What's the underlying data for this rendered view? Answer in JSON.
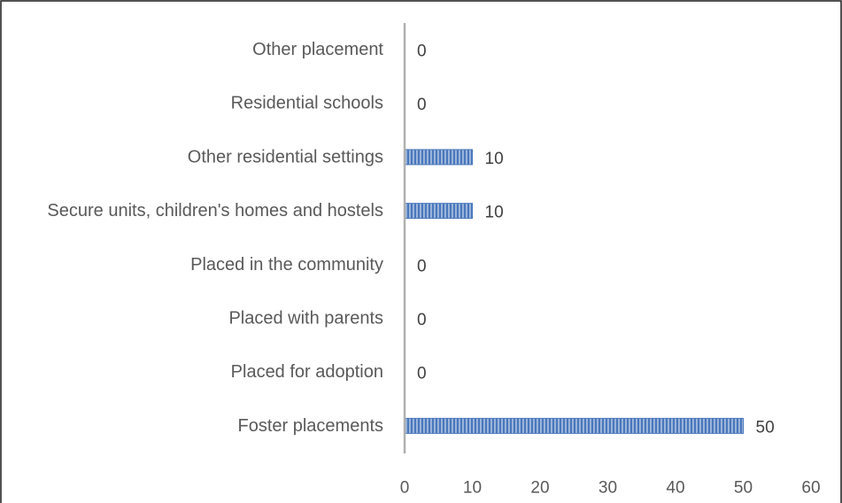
{
  "chart_data": {
    "type": "bar",
    "orientation": "horizontal",
    "categories": [
      "Other placement",
      "Residential schools",
      "Other residential settings",
      "Secure units, children's homes and hostels",
      "Placed in the community",
      "Placed with parents",
      "Placed for adoption",
      "Foster placements"
    ],
    "values": [
      0,
      0,
      10,
      10,
      0,
      0,
      0,
      50
    ],
    "data_labels": [
      "0",
      "0",
      "10",
      "10",
      "0",
      "0",
      "0",
      "50"
    ],
    "xlim": [
      0,
      60
    ],
    "x_ticks": [
      "0",
      "10",
      "20",
      "30",
      "40",
      "50",
      "60"
    ],
    "title": "",
    "xlabel": "",
    "ylabel": "",
    "grid": false,
    "legend": "none",
    "colors": {
      "bar_fill": "#4a78bc",
      "bar_stripe": "#c5d4ea",
      "axis": "#b0b0b0",
      "frame": "#1a1a1a"
    }
  }
}
